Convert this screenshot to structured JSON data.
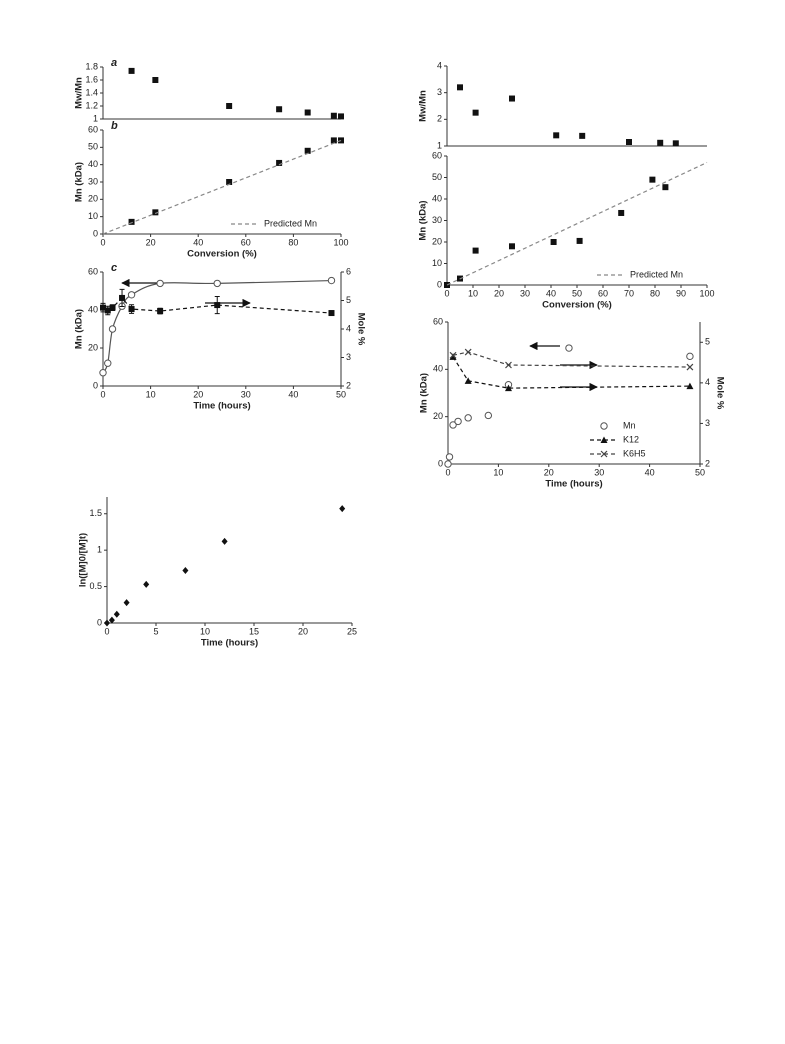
{
  "chart_data": [
    {
      "type": "scatter",
      "label": "a",
      "ylabel": "Mw/Mn",
      "xlim": [
        0,
        100
      ],
      "ylim": [
        1,
        1.8
      ],
      "yticks": [
        1,
        1.2,
        1.4,
        1.6,
        1.8
      ],
      "series": [
        {
          "color": "#111",
          "marker": "square",
          "x": [
            12,
            22,
            53,
            74,
            86,
            97,
            100
          ],
          "values": [
            1.74,
            1.6,
            1.2,
            1.15,
            1.1,
            1.05,
            1.04
          ]
        }
      ]
    },
    {
      "type": "scatter",
      "label": "b",
      "ylabel": "Mn (kDa)",
      "xlabel": "Conversion (%)",
      "xlim": [
        0,
        100
      ],
      "xticks": [
        0,
        20,
        40,
        60,
        80,
        100
      ],
      "ylim": [
        0,
        60
      ],
      "yticks": [
        0,
        10,
        20,
        30,
        40,
        50,
        60
      ],
      "legend": "lower right",
      "series": [
        {
          "color": "#111",
          "marker": "square",
          "x": [
            12,
            22,
            53,
            74,
            86,
            97,
            100
          ],
          "values": [
            7,
            12.5,
            30,
            41,
            48,
            54,
            54
          ]
        },
        {
          "name": "Predicted Mn",
          "color": "#888",
          "line": "dashed",
          "x": [
            0,
            100
          ],
          "values": [
            0,
            54
          ]
        }
      ]
    },
    {
      "type": "scatter",
      "label": "c",
      "ylabel": "Mn (kDa)",
      "y2label": "Mole %",
      "xlabel": "Time (hours)",
      "xlim": [
        0,
        50
      ],
      "xticks": [
        0,
        10,
        20,
        30,
        40,
        50
      ],
      "ylim": [
        0,
        60
      ],
      "yticks": [
        0,
        20,
        40,
        60
      ],
      "y2lim": [
        2,
        6
      ],
      "y2ticks": [
        2,
        3,
        4,
        5,
        6
      ],
      "series": [
        {
          "color": "#555",
          "marker": "circle",
          "line": "smooth",
          "x": [
            0,
            1,
            2,
            4,
            6,
            12,
            24,
            48
          ],
          "values": [
            7,
            12,
            30,
            42,
            48,
            54,
            54,
            55.5
          ]
        },
        {
          "color": "#111",
          "marker": "square",
          "line": "dashed",
          "axis": "y2",
          "x": [
            0,
            1,
            2,
            4,
            6,
            12,
            24,
            48
          ],
          "values": [
            4.75,
            4.65,
            4.75,
            5.09,
            4.7,
            4.63,
            4.84,
            4.56
          ],
          "errors": [
            0.15,
            0.15,
            0.1,
            0.3,
            0.15,
            0.1,
            0.3,
            0.05
          ]
        }
      ]
    },
    {
      "type": "scatter",
      "ylabel": "Mw/Mn",
      "xlim": [
        0,
        100
      ],
      "ylim": [
        1,
        4
      ],
      "yticks": [
        1,
        2,
        3,
        4
      ],
      "series": [
        {
          "color": "#111",
          "marker": "square",
          "x": [
            5,
            11,
            25,
            42,
            52,
            70,
            82,
            88
          ],
          "values": [
            3.2,
            2.25,
            2.78,
            1.4,
            1.38,
            1.15,
            1.12,
            1.1
          ]
        }
      ]
    },
    {
      "type": "scatter",
      "ylabel": "Mn (kDa)",
      "xlabel": "Conversion (%)",
      "xlim": [
        0,
        100
      ],
      "xticks": [
        0,
        10,
        20,
        30,
        40,
        50,
        60,
        70,
        80,
        90,
        100
      ],
      "ylim": [
        0,
        60
      ],
      "yticks": [
        0,
        10,
        20,
        30,
        40,
        50,
        60
      ],
      "legend": "lower right",
      "series": [
        {
          "color": "#111",
          "marker": "square",
          "x": [
            0,
            5,
            11,
            25,
            41,
            51,
            67,
            79,
            84
          ],
          "values": [
            0,
            3,
            16,
            18,
            20,
            20.5,
            33.5,
            49,
            45.5
          ]
        },
        {
          "name": "Predicted Mn",
          "color": "#888",
          "line": "dashed",
          "x": [
            0,
            100
          ],
          "values": [
            0,
            57
          ]
        }
      ]
    },
    {
      "type": "scatter",
      "ylabel": "Mn (kDa)",
      "y2label": "Mole %",
      "xlabel": "Time (hours)",
      "xlim": [
        0,
        50
      ],
      "xticks": [
        0,
        10,
        20,
        30,
        40,
        50
      ],
      "ylim": [
        0,
        60
      ],
      "yticks": [
        0,
        20,
        40,
        60
      ],
      "y2lim": [
        2,
        5.5
      ],
      "y2ticks": [
        2,
        3,
        4,
        5
      ],
      "legend": "lower right",
      "series": [
        {
          "name": "Mn",
          "color": "#555",
          "marker": "circle",
          "x": [
            0,
            0.3,
            1,
            2,
            4,
            8,
            12,
            24,
            48
          ],
          "values": [
            0,
            3,
            16.5,
            18,
            19.5,
            20.5,
            33.5,
            49,
            45.5
          ]
        },
        {
          "name": "K12",
          "color": "#111",
          "marker": "triangle",
          "line": "dashed",
          "axis": "y2",
          "x": [
            1,
            4,
            12,
            48
          ],
          "values": [
            4.64,
            4.05,
            3.87,
            3.92
          ]
        },
        {
          "name": "K6H5",
          "color": "#444",
          "marker": "x",
          "line": "dashed",
          "axis": "y2",
          "x": [
            1,
            4,
            12,
            48
          ],
          "values": [
            4.68,
            4.76,
            4.44,
            4.39
          ]
        }
      ]
    },
    {
      "type": "scatter",
      "ylabel": "ln([M]0/[M]t)",
      "xlabel": "Time (hours)",
      "xlim": [
        0,
        25
      ],
      "xticks": [
        0,
        5,
        10,
        15,
        20,
        25
      ],
      "ylim": [
        0,
        1.73
      ],
      "yticks": [
        0,
        0.5,
        1,
        1.5
      ],
      "series": [
        {
          "color": "#111",
          "marker": "diamond",
          "x": [
            0,
            0.5,
            1,
            2,
            4,
            8,
            12,
            24
          ],
          "values": [
            0,
            0.04,
            0.12,
            0.28,
            0.53,
            0.72,
            1.12,
            1.57
          ]
        }
      ]
    }
  ]
}
